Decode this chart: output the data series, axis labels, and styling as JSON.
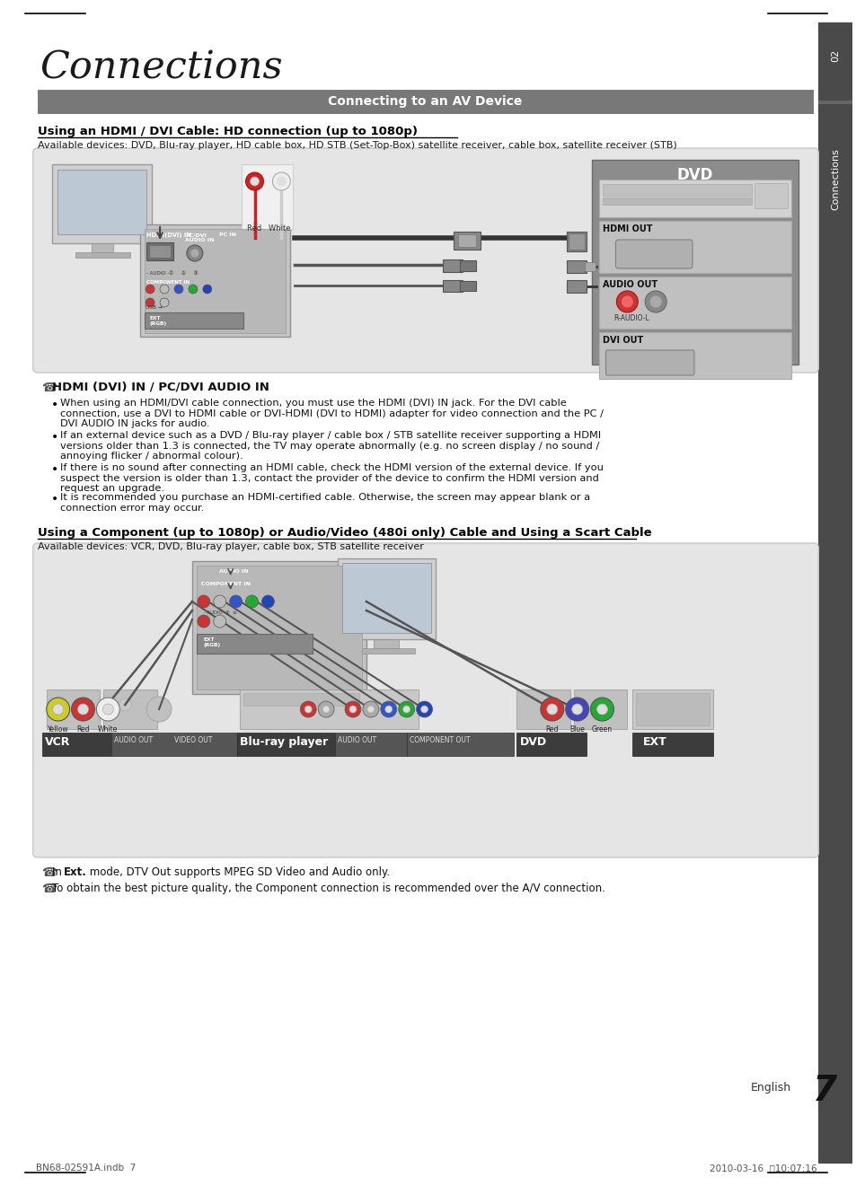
{
  "page_bg": "#ffffff",
  "title_text": "Connections",
  "section_bar_color": "#787878",
  "section_bar_text": "Connecting to an AV Device",
  "sidebar_color": "#505050",
  "sidebar_color2": "#3a3a3a",
  "subsection1_title": "Using an HDMI / DVI Cable: HD connection (up to 1080p)",
  "subsection1_devices": "Available devices: DVD, Blu-ray player, HD cable box, HD STB (Set-Top-Box) satellite receiver, cable box, satellite receiver (STB)",
  "note1_header": "HDMI (DVI) IN / PC/DVI AUDIO IN",
  "bullet1a": "When using an HDMI/DVI cable connection, you must use the ",
  "bullet1b": "HDMI (DVI) IN",
  "bullet1c": " jack. For the DVI cable",
  "bullet1_cont": "connection, use a DVI to HDMI cable or DVI-HDMI (DVI to HDMI) adapter for video connection and the PC /\nDVI AUDIO IN jacks for audio.",
  "bullet2": "If an external device such as a DVD / Blu-ray player / cable box / STB satellite receiver supporting a HDMI\nversions older than 1.3 is connected, the TV may operate abnormally (e.g. no screen display / no sound /\nannoying flicker / abnormal colour).",
  "bullet3": "If there is no sound after connecting an HDMI cable, check the HDMI version of the external device. If you\nsuspect the version is older than 1.3, contact the provider of the device to confirm the HDMI version and\nrequest an upgrade.",
  "bullet4": "It is recommended you purchase an HDMI-certified cable. Otherwise, the screen may appear blank or a\nconnection error may occur.",
  "subsection2_title": "Using a Component (up to 1080p) or Audio/Video (480i only) Cable and Using a Scart Cable",
  "subsection2_devices": "Available devices: VCR, DVD, Blu-ray player, cable box, STB satellite receiver",
  "note2_1a": "In ",
  "note2_1b": "Ext.",
  "note2_1c": " mode, DTV Out supports MPEG SD Video and Audio only.",
  "note2_2": "To obtain the best picture quality, the Component connection is recommended over the A/V connection.",
  "footer_left": "BN68-02591A.indb  7",
  "footer_right": "2010-03-16  ＂10:07:16",
  "english_label": "English",
  "page_number": "7"
}
